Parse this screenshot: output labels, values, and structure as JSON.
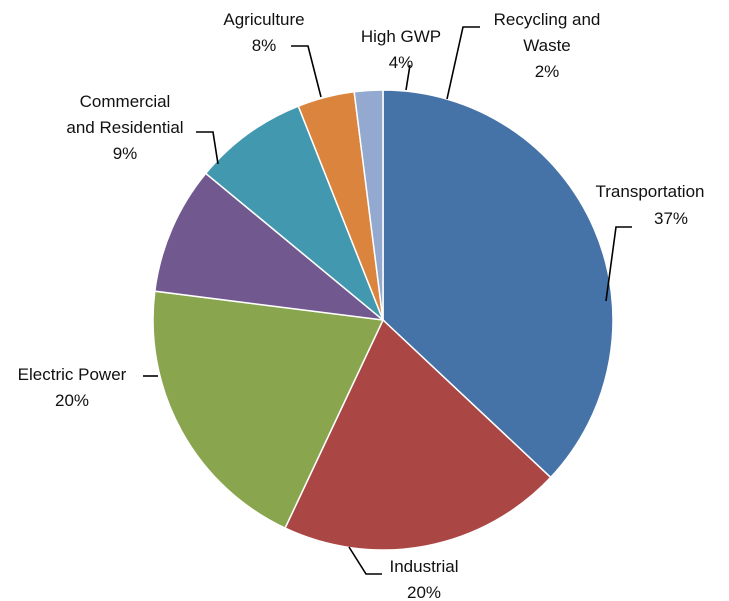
{
  "chart_data": {
    "type": "pie",
    "title": "",
    "start_angle_deg": 0,
    "direction": "clockwise",
    "legend": "none",
    "slices": [
      {
        "key": "transportation",
        "label": "Transportation",
        "percent_label": "37%",
        "value": 37,
        "color": "#4572A7"
      },
      {
        "key": "industrial",
        "label": "Industrial",
        "percent_label": "20%",
        "value": 20,
        "color": "#AA4643"
      },
      {
        "key": "electric-power",
        "label": "Electric Power",
        "percent_label": "20%",
        "value": 20,
        "color": "#89A54E"
      },
      {
        "key": "commercial-and-residential",
        "label": "Commercial and Residential",
        "percent_label": "9%",
        "value": 9,
        "color": "#71588F"
      },
      {
        "key": "agriculture",
        "label": "Agriculture",
        "percent_label": "8%",
        "value": 8,
        "color": "#4198AF"
      },
      {
        "key": "high-gwp",
        "label": "High GWP",
        "percent_label": "4%",
        "value": 4,
        "color": "#DB843D"
      },
      {
        "key": "recycling-and-waste",
        "label": "Recycling and Waste",
        "percent_label": "2%",
        "value": 2,
        "color": "#93A9CF"
      }
    ]
  }
}
